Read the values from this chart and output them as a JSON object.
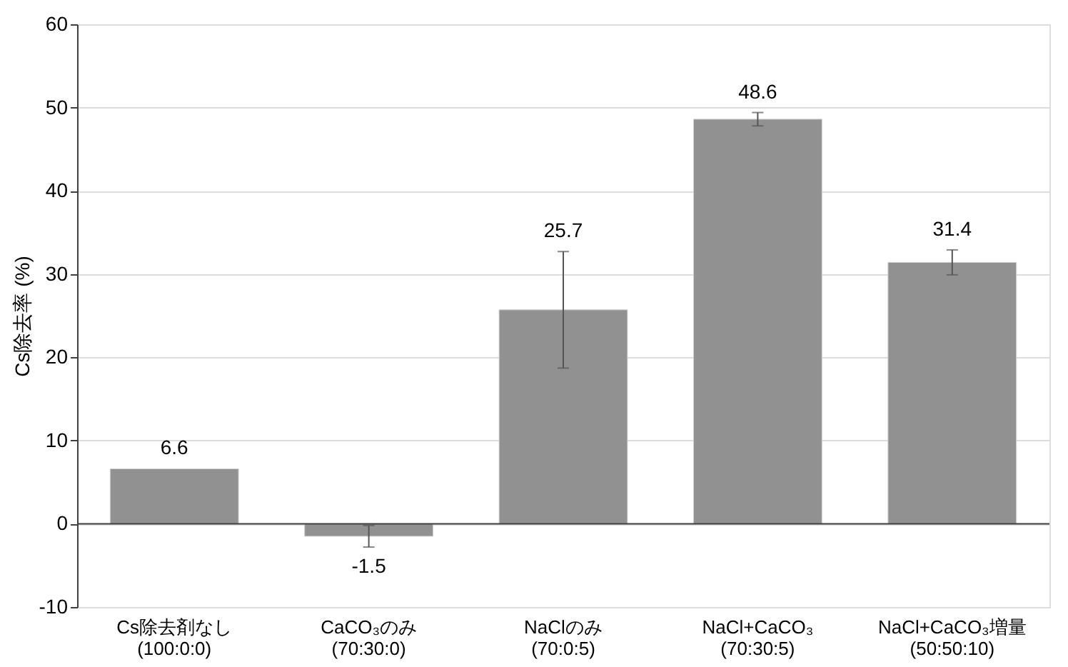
{
  "chart_data": {
    "type": "bar",
    "ylabel": "Cs除去率 (%)",
    "categories": [
      "Cs除去剤なし\n(100:0:0)",
      "CaCO₃のみ\n(70:30:0)",
      "NaClのみ\n(70:0:5)",
      "NaCl+CaCO₃\n(70:30:5)",
      "NaCl+CaCO₃増量\n(50:50:10)"
    ],
    "values": [
      6.6,
      -1.5,
      25.7,
      48.6,
      31.4
    ],
    "errors": [
      null,
      1.3,
      7.0,
      0.8,
      1.5
    ],
    "color": "#919191",
    "ylim": [
      -10,
      60
    ],
    "yticks": [
      -10,
      0,
      10,
      20,
      30,
      40,
      50,
      60
    ],
    "grid": "y",
    "value_labels": [
      "6.6",
      "-1.5",
      null,
      "48.6",
      "31.4"
    ],
    "annotations": [
      {
        "text": "25.7",
        "x": "NaClのみ\n(70:0:5)",
        "y": 32.7
      }
    ]
  }
}
